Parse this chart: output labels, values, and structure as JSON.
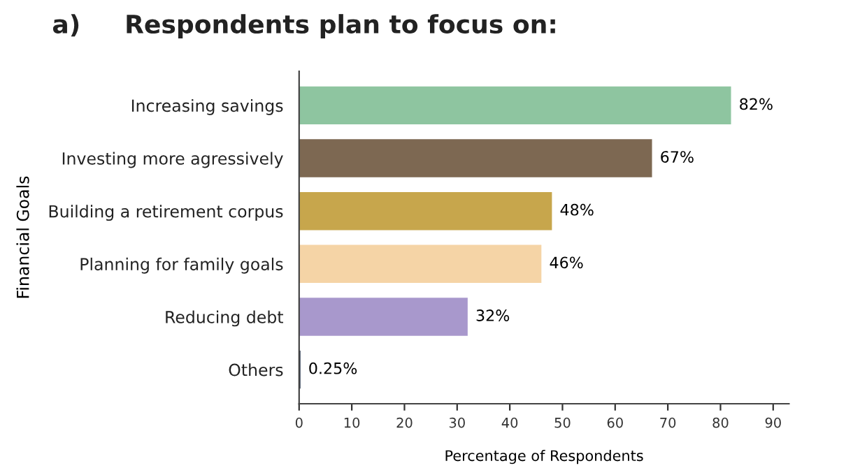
{
  "chart_data": {
    "type": "bar",
    "orientation": "horizontal",
    "title": "a)     Respondents plan to focus on:",
    "xlabel": "Percentage of Respondents",
    "ylabel": "Financial Goals",
    "categories": [
      "Increasing savings",
      "Investing more agressively",
      "Building a retirement corpus",
      "Planning for family goals",
      "Reducing debt",
      "Others"
    ],
    "values": [
      82,
      67,
      48,
      46,
      32,
      0.25
    ],
    "value_labels": [
      "82%",
      "67%",
      "48%",
      "46%",
      "32%",
      "0.25%"
    ],
    "colors": [
      "#8ec5a0",
      "#7d6852",
      "#c7a64c",
      "#f5d4a6",
      "#a898cc",
      "#1e2e48"
    ],
    "xlim": [
      0,
      93
    ],
    "xticks": [
      0,
      10,
      20,
      30,
      40,
      50,
      60,
      70,
      80,
      90
    ],
    "grid": false,
    "legend": false
  }
}
